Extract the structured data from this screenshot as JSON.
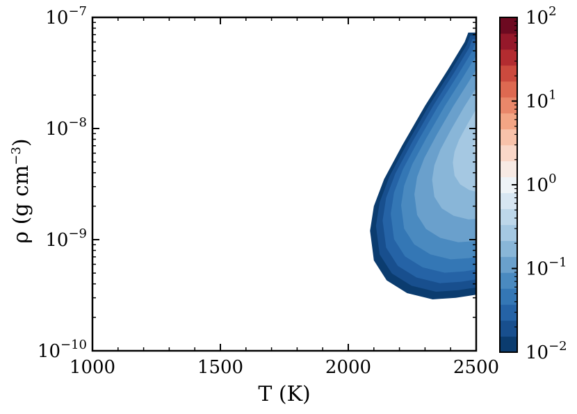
{
  "chart_data": {
    "type": "contour",
    "xlabel": "T (K)",
    "ylabel": "ρ (g cm^-3)",
    "ylabel_base": "ρ (g cm",
    "ylabel_exp": "−3",
    "ylabel_close": ")",
    "xlim": [
      1000,
      2500
    ],
    "ylim": [
      1e-10,
      1e-07
    ],
    "yscale": "log",
    "x_ticks": [
      {
        "value": 1000,
        "label": "1000"
      },
      {
        "value": 1500,
        "label": "1500"
      },
      {
        "value": 2000,
        "label": "2000"
      },
      {
        "value": 2500,
        "label": "2500"
      }
    ],
    "y_ticks": [
      {
        "value": 1e-10,
        "base": "10",
        "exp": "−10"
      },
      {
        "value": 1e-09,
        "base": "10",
        "exp": "−9"
      },
      {
        "value": 1e-08,
        "base": "10",
        "exp": "−8"
      },
      {
        "value": 1e-07,
        "base": "10",
        "exp": "−7"
      }
    ],
    "colorbar": {
      "scale": "log",
      "range": [
        0.01,
        100
      ],
      "ticks": [
        {
          "value": 0.01,
          "base": "10",
          "exp": "−2"
        },
        {
          "value": 0.1,
          "base": "10",
          "exp": "−1"
        },
        {
          "value": 1,
          "base": "10",
          "exp": "0"
        },
        {
          "value": 10,
          "base": "10",
          "exp": "1"
        },
        {
          "value": 100,
          "base": "10",
          "exp": "2"
        }
      ],
      "colors": [
        "#0b3c6f",
        "#184f8e",
        "#2563a6",
        "#3477b5",
        "#4a8ac0",
        "#6aa0cc",
        "#89b6d8",
        "#a5c8e2",
        "#bdd7ea",
        "#d7e6f2",
        "#eef3f7",
        "#f7eae4",
        "#f9d7c8",
        "#f8c2aa",
        "#f3a585",
        "#e9876a",
        "#de6951",
        "#cc4a3e",
        "#b32c30",
        "#95182a",
        "#6d0a21"
      ]
    },
    "region_boundary": [
      [
        2469,
        7.3e-08
      ],
      [
        2455,
        6e-08
      ],
      [
        2390,
        3.4e-08
      ],
      [
        2300,
        1.6e-08
      ],
      [
        2210,
        7e-09
      ],
      [
        2140,
        3.5e-09
      ],
      [
        2100,
        2e-09
      ],
      [
        2085,
        1.2e-09
      ],
      [
        2100,
        6.5e-10
      ],
      [
        2150,
        4.3e-10
      ],
      [
        2230,
        3.3e-10
      ],
      [
        2330,
        2.9e-10
      ],
      [
        2420,
        3e-10
      ],
      [
        2500,
        3.2e-10
      ]
    ]
  }
}
